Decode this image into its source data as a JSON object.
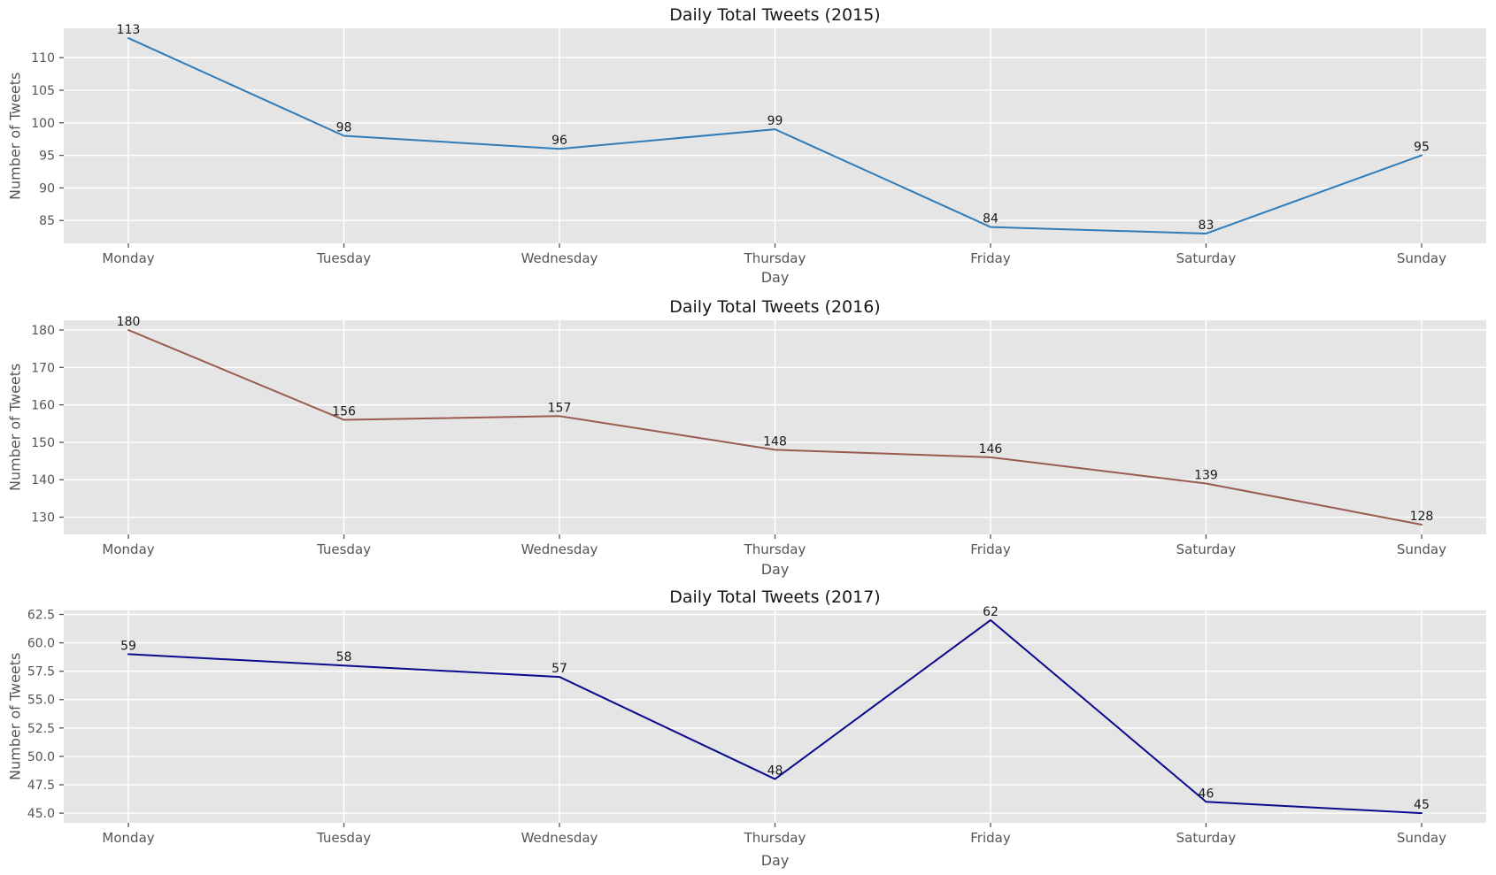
{
  "figure": {
    "background": "#ffffff"
  },
  "style": {
    "axes_background": "#e5e5e5",
    "grid_color": "#ffffff",
    "tick_color": "#555555",
    "tick_label_color": "#555555",
    "axis_label_color": "#555555",
    "title_color": "#151515",
    "value_label_color": "#1a1a1a"
  },
  "chart_data": [
    {
      "type": "line",
      "title": "Daily Total Tweets (2015)",
      "xlabel": "Day",
      "ylabel": "Number of Tweets",
      "categories": [
        "Monday",
        "Tuesday",
        "Wednesday",
        "Thursday",
        "Friday",
        "Saturday",
        "Sunday"
      ],
      "values": [
        113,
        98,
        96,
        99,
        84,
        83,
        95
      ],
      "value_labels": [
        "113",
        "98",
        "96",
        "99",
        "84",
        "83",
        "95"
      ],
      "line_color": "#2e7bb8",
      "ylim": [
        81.5,
        114.5
      ],
      "yticks": [
        85,
        90,
        95,
        100,
        105,
        110
      ],
      "ytick_labels": [
        "85",
        "90",
        "95",
        "100",
        "105",
        "110"
      ],
      "grid": true,
      "legend": "none"
    },
    {
      "type": "line",
      "title": "Daily Total Tweets (2016)",
      "xlabel": "Day",
      "ylabel": "Number of Tweets",
      "categories": [
        "Monday",
        "Tuesday",
        "Wednesday",
        "Thursday",
        "Friday",
        "Saturday",
        "Sunday"
      ],
      "values": [
        180,
        156,
        157,
        148,
        146,
        139,
        128
      ],
      "value_labels": [
        "180",
        "156",
        "157",
        "148",
        "146",
        "139",
        "128"
      ],
      "line_color": "#995a50",
      "ylim": [
        125.4,
        182.6
      ],
      "yticks": [
        130,
        140,
        150,
        160,
        170,
        180
      ],
      "ytick_labels": [
        "130",
        "140",
        "150",
        "160",
        "170",
        "180"
      ],
      "grid": true,
      "legend": "none"
    },
    {
      "type": "line",
      "title": "Daily Total Tweets (2017)",
      "xlabel": "Day",
      "ylabel": "Number of Tweets",
      "categories": [
        "Monday",
        "Tuesday",
        "Wednesday",
        "Thursday",
        "Friday",
        "Saturday",
        "Sunday"
      ],
      "values": [
        59,
        58,
        57,
        48,
        62,
        46,
        45
      ],
      "value_labels": [
        "59",
        "58",
        "57",
        "48",
        "62",
        "46",
        "45"
      ],
      "line_color": "#0a0a8c",
      "ylim": [
        44.15,
        62.85
      ],
      "yticks": [
        45.0,
        47.5,
        50.0,
        52.5,
        55.0,
        57.5,
        60.0,
        62.5
      ],
      "ytick_labels": [
        "45.0",
        "47.5",
        "50.0",
        "52.5",
        "55.0",
        "57.5",
        "60.0",
        "62.5"
      ],
      "grid": true,
      "legend": "none"
    }
  ]
}
